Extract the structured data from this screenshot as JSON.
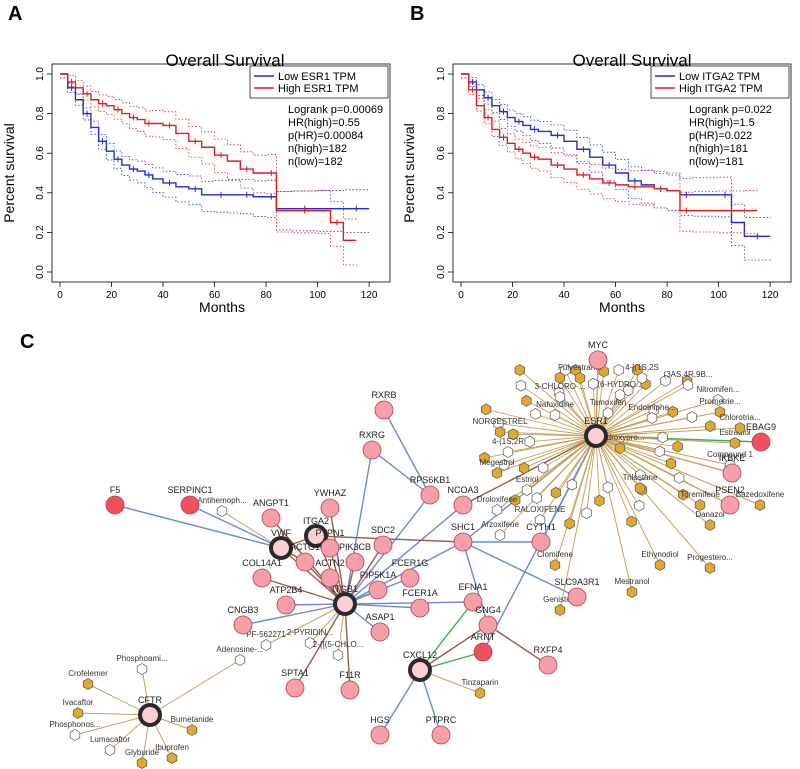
{
  "panels": {
    "a": "A",
    "b": "B",
    "c": "C"
  },
  "chart_data": [
    {
      "type": "line",
      "title": "Overall Survival",
      "xlabel": "Months",
      "ylabel": "Percent survival",
      "xlim": [
        0,
        125
      ],
      "ylim": [
        0,
        1.0
      ],
      "xticks": [
        0,
        20,
        40,
        60,
        80,
        100,
        120
      ],
      "yticks": [
        "0.0",
        "0.2",
        "0.4",
        "0.6",
        "0.8",
        "1.0"
      ],
      "legend_position": "top-right",
      "legend": [
        "Low ESR1 TPM",
        "High ESR1 TPM"
      ],
      "stats": [
        "Logrank p=0.00069",
        "HR(high)=0.55",
        "p(HR)=0.00084",
        "n(high)=182",
        "n(low)=182"
      ],
      "series": [
        {
          "name": "Low ESR1 TPM",
          "color": "#1f2fd0",
          "x": [
            0,
            3,
            6,
            9,
            12,
            15,
            18,
            21,
            24,
            27,
            30,
            33,
            36,
            40,
            45,
            50,
            55,
            60,
            65,
            70,
            75,
            80,
            84,
            90,
            100,
            110,
            120
          ],
          "y": [
            1.0,
            0.93,
            0.87,
            0.8,
            0.73,
            0.66,
            0.61,
            0.57,
            0.54,
            0.52,
            0.51,
            0.49,
            0.47,
            0.45,
            0.43,
            0.42,
            0.39,
            0.39,
            0.39,
            0.39,
            0.38,
            0.38,
            0.32,
            0.32,
            0.32,
            0.32,
            0.32
          ]
        },
        {
          "name": "High ESR1 TPM",
          "color": "#e01e1e",
          "x": [
            0,
            3,
            6,
            9,
            12,
            15,
            18,
            21,
            24,
            27,
            30,
            33,
            36,
            40,
            45,
            50,
            55,
            60,
            65,
            70,
            75,
            80,
            84,
            90,
            100,
            105,
            110,
            115
          ],
          "y": [
            1.0,
            0.96,
            0.93,
            0.9,
            0.87,
            0.85,
            0.84,
            0.82,
            0.8,
            0.78,
            0.77,
            0.75,
            0.75,
            0.74,
            0.7,
            0.66,
            0.63,
            0.59,
            0.56,
            0.52,
            0.5,
            0.5,
            0.31,
            0.31,
            0.31,
            0.25,
            0.16,
            0.16
          ]
        }
      ]
    },
    {
      "type": "line",
      "title": "Overall Survival",
      "xlabel": "Months",
      "ylabel": "Percent survival",
      "xlim": [
        0,
        125
      ],
      "ylim": [
        0,
        1.0
      ],
      "xticks": [
        0,
        20,
        40,
        60,
        80,
        100,
        120
      ],
      "yticks": [
        "0.0",
        "0.2",
        "0.4",
        "0.6",
        "0.8",
        "1.0"
      ],
      "legend_position": "top-right",
      "legend": [
        "Low ITGA2 TPM",
        "High ITGA2 TPM"
      ],
      "stats": [
        "Logrank p=0.022",
        "HR(high)=1.5",
        "p(HR)=0.022",
        "n(high)=181",
        "n(low)=181"
      ],
      "series": [
        {
          "name": "Low ITGA2 TPM",
          "color": "#1f2fd0",
          "x": [
            0,
            3,
            6,
            9,
            12,
            15,
            18,
            21,
            24,
            27,
            30,
            35,
            40,
            45,
            50,
            55,
            60,
            65,
            70,
            75,
            80,
            85,
            90,
            100,
            105,
            110,
            120
          ],
          "y": [
            1.0,
            0.96,
            0.92,
            0.88,
            0.84,
            0.81,
            0.78,
            0.76,
            0.74,
            0.72,
            0.71,
            0.69,
            0.66,
            0.62,
            0.58,
            0.54,
            0.5,
            0.46,
            0.44,
            0.42,
            0.41,
            0.39,
            0.39,
            0.39,
            0.25,
            0.18,
            0.18
          ]
        },
        {
          "name": "High ITGA2 TPM",
          "color": "#e01e1e",
          "x": [
            0,
            3,
            6,
            9,
            12,
            15,
            18,
            21,
            24,
            27,
            30,
            35,
            40,
            45,
            50,
            55,
            60,
            65,
            70,
            75,
            80,
            85,
            90,
            100,
            110,
            115
          ],
          "y": [
            1.0,
            0.92,
            0.84,
            0.78,
            0.72,
            0.68,
            0.65,
            0.62,
            0.6,
            0.58,
            0.57,
            0.54,
            0.52,
            0.49,
            0.47,
            0.45,
            0.44,
            0.43,
            0.43,
            0.42,
            0.41,
            0.31,
            0.31,
            0.31,
            0.31,
            0.31
          ]
        }
      ]
    }
  ],
  "network": {
    "hub_genes": [
      "ESR1",
      "VWF",
      "ITGA2",
      "CFTR",
      "CXCL12"
    ],
    "gene_nodes": [
      {
        "label": "F5"
      },
      {
        "label": "SERPINC1"
      },
      {
        "label": "VWF"
      },
      {
        "label": "ITGA2"
      },
      {
        "label": "ANGPT1"
      },
      {
        "label": "YWHAZ"
      },
      {
        "label": "RXRG"
      },
      {
        "label": "RXRB"
      },
      {
        "label": "RPS6KB1"
      },
      {
        "label": "PTPN1"
      },
      {
        "label": "SDC2"
      },
      {
        "label": "PIK3CB"
      },
      {
        "label": "ACTN2"
      },
      {
        "label": "ACTG1"
      },
      {
        "label": "COL14A1"
      },
      {
        "label": "ATP2B4"
      },
      {
        "label": "CNGB3"
      },
      {
        "label": "PIP5K1A"
      },
      {
        "label": "FCER1G"
      },
      {
        "label": "FCER1A"
      },
      {
        "label": "ASAP1"
      },
      {
        "label": "SPTA1"
      },
      {
        "label": "F11R"
      },
      {
        "label": "ITGB1"
      },
      {
        "label": "SHC1"
      },
      {
        "label": "NCOA3"
      },
      {
        "label": "EFNA1"
      },
      {
        "label": "CYTH1"
      },
      {
        "label": "SLC9A3R1"
      },
      {
        "label": "GNG4"
      },
      {
        "label": "ARNT"
      },
      {
        "label": "RXFP4"
      },
      {
        "label": "CXCL12"
      },
      {
        "label": "HGS"
      },
      {
        "label": "PTPRC"
      },
      {
        "label": "CFTR"
      },
      {
        "label": "ESR1"
      },
      {
        "label": "MYC"
      },
      {
        "label": "EBAG9"
      },
      {
        "label": "IKBKE"
      },
      {
        "label": "PSEN2"
      }
    ],
    "drug_nodes": [
      {
        "label": "Antihemoph..."
      },
      {
        "label": "PF-562271"
      },
      {
        "label": "2-PYRIDIN..."
      },
      {
        "label": "2-{[(5-CHLO..."
      },
      {
        "label": "Adenosine-..."
      },
      {
        "label": "Phosphoami..."
      },
      {
        "label": "Crofelemer"
      },
      {
        "label": "Ivacaftor"
      },
      {
        "label": "Phosphonos..."
      },
      {
        "label": "Lumacaftor"
      },
      {
        "label": "Glyburide"
      },
      {
        "label": "Ibuprofen"
      },
      {
        "label": "Bumetanide"
      },
      {
        "label": "Tinzaparin"
      },
      {
        "label": "Fulvestran..."
      },
      {
        "label": "4-[(1S,2S"
      },
      {
        "label": "(3AS,4R,9B..."
      },
      {
        "label": "3-CHLORO-..."
      },
      {
        "label": "(6-HYDRO..."
      },
      {
        "label": "Nitromifen..."
      },
      {
        "label": "Nafoxidine"
      },
      {
        "label": "Tamoxifen"
      },
      {
        "label": "Endomiphe..."
      },
      {
        "label": "NORGESTREL"
      },
      {
        "label": "4-(1S,2R"
      },
      {
        "label": "Medroxypro..."
      },
      {
        "label": "Megestrol"
      },
      {
        "label": "Estriol"
      },
      {
        "label": "Trilostane"
      },
      {
        "label": "Droloxifene"
      },
      {
        "label": "Arzoxifene"
      },
      {
        "label": "RALOXIFENE"
      },
      {
        "label": "Danazol"
      },
      {
        "label": "Bazedoxifene"
      },
      {
        "label": "Toremifene"
      },
      {
        "label": "Clomifene"
      },
      {
        "label": "Ethynodiol"
      },
      {
        "label": "Progestero..."
      },
      {
        "label": "Mestranol"
      },
      {
        "label": "Genistein"
      },
      {
        "label": "Estradiol"
      },
      {
        "label": "Compound 1"
      },
      {
        "label": "Prometrie..."
      },
      {
        "label": "Chlorotria..."
      }
    ]
  }
}
